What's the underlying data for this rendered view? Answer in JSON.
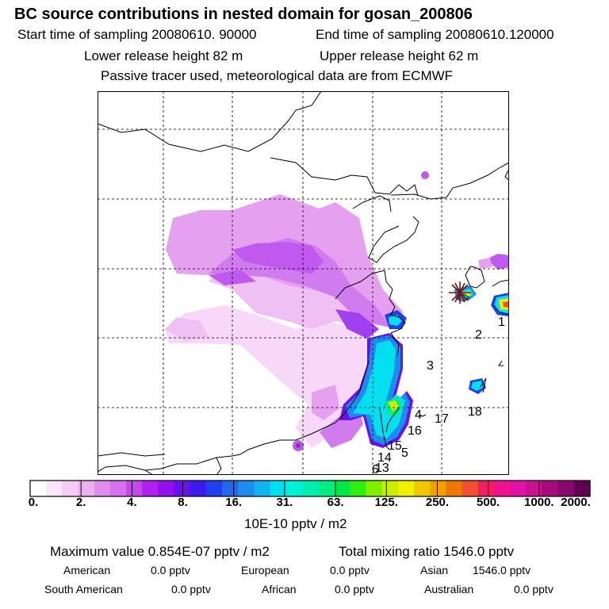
{
  "header": {
    "title": "BC  source contributions in nested domain for gosan_200806",
    "start_label": "Start time of sampling 20080610. 90000",
    "end_label": "End time of sampling 20080610.120000",
    "lower_label": "Lower release height   82 m",
    "upper_label": "Upper release height   62 m",
    "note": "Passive tracer used, meteorological data are from ECMWF"
  },
  "map": {
    "region_labels": [
      "1",
      "2",
      "3",
      "4",
      "17",
      "18",
      "16",
      "15",
      "5",
      "14",
      "13",
      "6"
    ]
  },
  "colorbar": {
    "tick_labels": [
      "0.",
      "2.",
      "4.",
      "8.",
      "16.",
      "31.",
      "63.",
      "125.",
      "250.",
      "500.",
      "1000.",
      "2000."
    ],
    "colors": [
      "#ffffff",
      "#fbe6fb",
      "#f5ccf7",
      "#eeb0f2",
      "#e28cf0",
      "#d570ee",
      "#c448ee",
      "#b020ee",
      "#9010ee",
      "#6a10ee",
      "#3c1aee",
      "#2040ee",
      "#2466ee",
      "#1e8cef",
      "#10b4f0",
      "#00e0f0",
      "#00f0d8",
      "#00eeb0",
      "#00ee80",
      "#00e848",
      "#30ee10",
      "#80ee00",
      "#c8ee00",
      "#f0f000",
      "#f0c800",
      "#f0a000",
      "#f07800",
      "#f05030",
      "#f02060",
      "#f01090",
      "#e010a8",
      "#c81090",
      "#a80880",
      "#880870",
      "#600050"
    ],
    "unit": "10E-10 pptv / m2"
  },
  "stats": {
    "max_label": "Maximum value  0.854E-07 pptv / m2",
    "total_label": "Total mixing ratio     1546.0 pptv"
  },
  "regions": {
    "american_label": "American",
    "american_val": "0.0 pptv",
    "european_label": "European",
    "european_val": "0.0 pptv",
    "asian_label": "Asian",
    "asian_val": "1546.0 pptv",
    "southam_label": "South American",
    "southam_val": "0.0 pptv",
    "african_label": "African",
    "african_val": "0.0 pptv",
    "australian_label": "Australian",
    "australian_val": "0.0 pptv"
  }
}
